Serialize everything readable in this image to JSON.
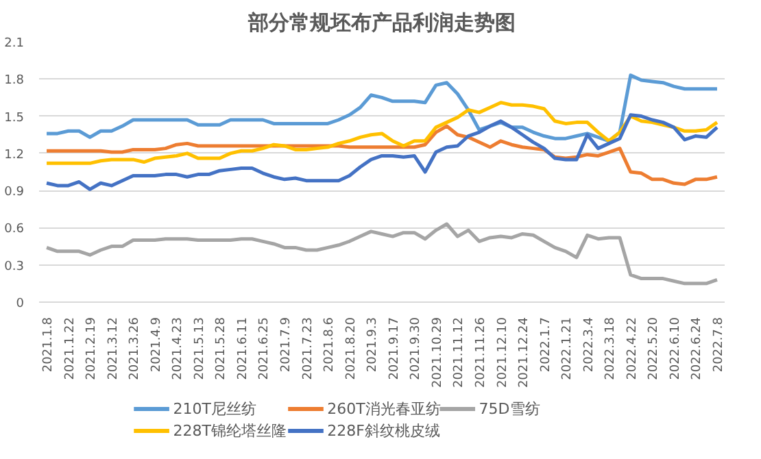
{
  "chart_data": {
    "type": "line",
    "title": "部分常规坯布产品利润走势图",
    "categories": [
      "2021.1.8",
      null,
      "2021.1.22",
      null,
      "2021.2.19",
      null,
      "2021.3.12",
      null,
      "2021.3.26",
      null,
      "2021.4.9",
      null,
      "2021.4.23",
      null,
      "2021.5.13",
      null,
      "2021.5.28",
      null,
      "2021.6.11",
      null,
      "2021.6.25",
      null,
      "2021.7.9",
      null,
      "2021.7.23",
      null,
      "2021.8.6",
      null,
      "2021.8.20",
      null,
      "2021.9.3",
      null,
      "2021.9.17",
      null,
      "2021.9.30",
      null,
      "2021.10.29",
      null,
      "2021.11.12",
      null,
      "2021.11.26",
      null,
      "2021.12.10",
      null,
      "2021.12.24",
      null,
      "2022.1.7",
      null,
      "2022.1.21",
      null,
      "2022.3.4",
      null,
      "2022.3.18",
      null,
      "2022.4.22",
      null,
      "2022.5.20",
      null,
      "2022.6.10",
      null,
      "2022.6.24",
      null,
      "2022.7.8"
    ],
    "series": [
      {
        "name": "210T尼丝纺",
        "color": "#5b9bd5",
        "values": [
          1.36,
          1.36,
          1.38,
          1.38,
          1.33,
          1.38,
          1.38,
          1.42,
          1.47,
          1.47,
          1.47,
          1.47,
          1.47,
          1.47,
          1.43,
          1.43,
          1.43,
          1.47,
          1.47,
          1.47,
          1.47,
          1.44,
          1.44,
          1.44,
          1.44,
          1.44,
          1.44,
          1.47,
          1.51,
          1.57,
          1.67,
          1.65,
          1.62,
          1.62,
          1.62,
          1.61,
          1.75,
          1.77,
          1.68,
          1.55,
          1.39,
          1.42,
          1.45,
          1.41,
          1.41,
          1.37,
          1.34,
          1.32,
          1.32,
          1.34,
          1.36,
          1.33,
          1.3,
          1.37,
          1.83,
          1.79,
          1.78,
          1.77,
          1.74,
          1.72,
          1.72,
          1.72,
          1.72
        ]
      },
      {
        "name": "260T消光春亚纺",
        "color": "#ed7d31",
        "values": [
          1.22,
          1.22,
          1.22,
          1.22,
          1.22,
          1.22,
          1.21,
          1.21,
          1.23,
          1.23,
          1.23,
          1.24,
          1.27,
          1.28,
          1.26,
          1.26,
          1.26,
          1.26,
          1.26,
          1.26,
          1.26,
          1.26,
          1.26,
          1.26,
          1.26,
          1.26,
          1.26,
          1.26,
          1.25,
          1.25,
          1.25,
          1.25,
          1.25,
          1.25,
          1.25,
          1.27,
          1.37,
          1.42,
          1.35,
          1.33,
          1.29,
          1.25,
          1.3,
          1.27,
          1.25,
          1.24,
          1.23,
          1.17,
          1.16,
          1.17,
          1.19,
          1.18,
          1.21,
          1.24,
          1.05,
          1.04,
          0.99,
          0.99,
          0.96,
          0.95,
          0.99,
          0.99,
          1.01
        ]
      },
      {
        "name": "75D雪纺",
        "color": "#a5a5a5",
        "values": [
          0.44,
          0.41,
          0.41,
          0.41,
          0.38,
          0.42,
          0.45,
          0.45,
          0.5,
          0.5,
          0.5,
          0.51,
          0.51,
          0.51,
          0.5,
          0.5,
          0.5,
          0.5,
          0.51,
          0.51,
          0.49,
          0.47,
          0.44,
          0.44,
          0.42,
          0.42,
          0.44,
          0.46,
          0.49,
          0.53,
          0.57,
          0.55,
          0.53,
          0.56,
          0.56,
          0.51,
          0.58,
          0.63,
          0.53,
          0.58,
          0.49,
          0.52,
          0.53,
          0.52,
          0.55,
          0.54,
          0.49,
          0.44,
          0.41,
          0.36,
          0.54,
          0.51,
          0.52,
          0.52,
          0.22,
          0.19,
          0.19,
          0.19,
          0.17,
          0.15,
          0.15,
          0.15,
          0.18
        ]
      },
      {
        "name": "228T锦纶塔丝隆",
        "color": "#ffc000",
        "values": [
          1.12,
          1.12,
          1.12,
          1.12,
          1.12,
          1.14,
          1.15,
          1.15,
          1.15,
          1.13,
          1.16,
          1.17,
          1.18,
          1.2,
          1.16,
          1.16,
          1.16,
          1.2,
          1.22,
          1.22,
          1.24,
          1.27,
          1.26,
          1.23,
          1.23,
          1.24,
          1.25,
          1.28,
          1.3,
          1.33,
          1.35,
          1.36,
          1.3,
          1.26,
          1.3,
          1.3,
          1.41,
          1.45,
          1.49,
          1.55,
          1.53,
          1.57,
          1.61,
          1.59,
          1.59,
          1.58,
          1.56,
          1.46,
          1.44,
          1.45,
          1.45,
          1.37,
          1.3,
          1.37,
          1.5,
          1.46,
          1.45,
          1.43,
          1.41,
          1.38,
          1.38,
          1.39,
          1.45
        ]
      },
      {
        "name": "228F斜纹桃皮绒",
        "color": "#4472c4",
        "values": [
          0.96,
          0.94,
          0.94,
          0.97,
          0.91,
          0.96,
          0.94,
          0.98,
          1.02,
          1.02,
          1.02,
          1.03,
          1.03,
          1.01,
          1.03,
          1.03,
          1.06,
          1.07,
          1.08,
          1.08,
          1.04,
          1.01,
          0.99,
          1.0,
          0.98,
          0.98,
          0.98,
          0.98,
          1.02,
          1.09,
          1.15,
          1.18,
          1.18,
          1.17,
          1.18,
          1.05,
          1.21,
          1.25,
          1.26,
          1.34,
          1.37,
          1.42,
          1.46,
          1.41,
          1.35,
          1.29,
          1.24,
          1.16,
          1.15,
          1.15,
          1.35,
          1.24,
          1.28,
          1.32,
          1.51,
          1.5,
          1.47,
          1.45,
          1.41,
          1.31,
          1.34,
          1.33,
          1.41
        ]
      }
    ],
    "ylim": [
      0,
      2.1
    ],
    "yticks": [
      0,
      0.3,
      0.6,
      0.9,
      1.2,
      1.5,
      1.8,
      2.1
    ],
    "grid": "y",
    "legend": "bottom",
    "marker": "none",
    "line_style": "solid"
  }
}
